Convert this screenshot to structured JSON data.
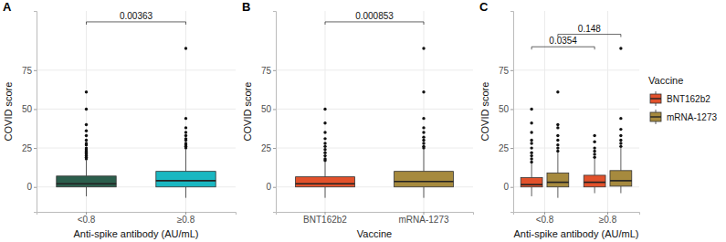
{
  "chart_data": [
    {
      "type": "box",
      "panel": "A",
      "x_label": "Anti-spike antibody (AU/mL)",
      "y_label": "COVID score",
      "categories": [
        "<0.8",
        "≥0.8"
      ],
      "colors": [
        "#2b5e4c",
        "#1ab7c1"
      ],
      "ylim": [
        -16,
        113
      ],
      "yticks": [
        0,
        25,
        50,
        75
      ],
      "grid": true,
      "boxes": [
        {
          "whisker_low": -6,
          "q1": 0,
          "median": 2,
          "q3": 7,
          "whisker_high": 17,
          "outliers": [
            18,
            19,
            20,
            21,
            22,
            23,
            24,
            25,
            27,
            28,
            30,
            33,
            36,
            40,
            50,
            61
          ]
        },
        {
          "whisker_low": -7,
          "q1": 0,
          "median": 4,
          "q3": 10,
          "whisker_high": 24,
          "outliers": [
            25,
            26,
            27,
            28,
            30,
            31,
            33,
            35,
            38,
            44,
            89
          ]
        }
      ],
      "comparisons": [
        {
          "from": 0,
          "to": 1,
          "y": 106,
          "p": 0.00363
        }
      ]
    },
    {
      "type": "box",
      "panel": "B",
      "x_label": "Vaccine",
      "y_label": "COVID score",
      "categories": [
        "BNT162b2",
        "mRNA-1273"
      ],
      "colors": [
        "#e2512b",
        "#a68a3e"
      ],
      "ylim": [
        -16,
        113
      ],
      "yticks": [
        0,
        25,
        50,
        75
      ],
      "grid": true,
      "boxes": [
        {
          "whisker_low": -7,
          "q1": 0,
          "median": 2,
          "q3": 6.5,
          "whisker_high": 16,
          "outliers": [
            17,
            18,
            20,
            22,
            24,
            26,
            28,
            31,
            35,
            41,
            50
          ]
        },
        {
          "whisker_low": -7,
          "q1": 0,
          "median": 3.5,
          "q3": 10,
          "whisker_high": 24,
          "outliers": [
            25,
            26,
            28,
            30,
            32,
            35,
            38,
            44,
            61,
            89
          ]
        }
      ],
      "comparisons": [
        {
          "from": 0,
          "to": 1,
          "y": 106,
          "p": 0.000853
        }
      ]
    },
    {
      "type": "box",
      "panel": "C",
      "x_label": "Anti-spike antibody (AU/mL)",
      "y_label": "COVID score",
      "categories": [
        "<0.8",
        "≥0.8"
      ],
      "legend": "right",
      "legend_title": "Vaccine",
      "ylim": [
        -16,
        113
      ],
      "yticks": [
        0,
        25,
        50,
        75
      ],
      "grid": true,
      "series": [
        {
          "name": "BNT162b2",
          "color": "#e2512b",
          "boxes": [
            {
              "whisker_low": -6,
              "q1": 0,
              "median": 1.5,
              "q3": 6,
              "whisker_high": 15,
              "outliers": [
                16,
                18,
                20,
                22,
                25,
                28,
                30,
                35,
                41,
                50
              ]
            },
            {
              "whisker_low": -4,
              "q1": 0,
              "median": 3,
              "q3": 7.5,
              "whisker_high": 18,
              "outliers": [
                19,
                21,
                23,
                25,
                29,
                33
              ]
            }
          ]
        },
        {
          "name": "mRNA-1273",
          "color": "#a68a3e",
          "boxes": [
            {
              "whisker_low": -7,
              "q1": 0,
              "median": 3,
              "q3": 9,
              "whisker_high": 22,
              "outliers": [
                23,
                25,
                27,
                30,
                33,
                38,
                40,
                61
              ]
            },
            {
              "whisker_low": -4,
              "q1": 0.5,
              "median": 4,
              "q3": 10.5,
              "whisker_high": 25,
              "outliers": [
                26,
                28,
                30,
                33,
                37,
                44,
                89
              ]
            }
          ]
        }
      ],
      "comparisons": [
        {
          "series": 0,
          "from": 0,
          "to": 1,
          "y": 90,
          "p": 0.0354
        },
        {
          "series": 1,
          "from": 0,
          "to": 1,
          "y": 98,
          "p": 0.148
        }
      ]
    }
  ]
}
